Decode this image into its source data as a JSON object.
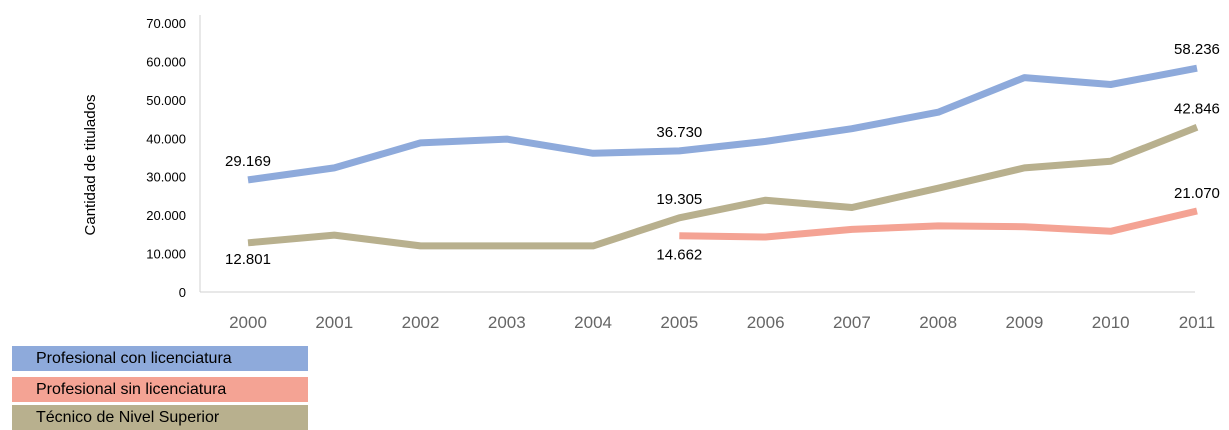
{
  "chart_data": {
    "type": "line",
    "title": "",
    "xlabel": "",
    "ylabel": "Cantidad de titulados",
    "categories": [
      "2000",
      "2001",
      "2002",
      "2003",
      "2004",
      "2005",
      "2006",
      "2007",
      "2008",
      "2009",
      "2010",
      "2011"
    ],
    "ylim": [
      0,
      70000
    ],
    "yticks": [
      "0",
      "10.000",
      "20.000",
      "30.000",
      "40.000",
      "50.000",
      "60.000",
      "70.000"
    ],
    "grid": false,
    "legend_position": "bottom-left",
    "series": [
      {
        "name": "Profesional con licenciatura",
        "color": "#8eaadb",
        "values": [
          29169,
          32300,
          38800,
          39800,
          36100,
          36730,
          39200,
          42500,
          46800,
          55800,
          54000,
          58236
        ]
      },
      {
        "name": "Profesional sin licenciatura",
        "color": "#f4a394",
        "values": [
          null,
          null,
          null,
          null,
          null,
          14662,
          14300,
          16300,
          17200,
          17000,
          15800,
          21070
        ]
      },
      {
        "name": "Técnico de Nivel Superior",
        "color": "#b8b08e",
        "values": [
          12801,
          14800,
          12000,
          12000,
          12000,
          19305,
          23900,
          22000,
          27000,
          32300,
          34000,
          42846
        ]
      }
    ],
    "data_labels": [
      {
        "series": 0,
        "index": 0,
        "text": "29.169"
      },
      {
        "series": 0,
        "index": 5,
        "text": "36.730"
      },
      {
        "series": 0,
        "index": 11,
        "text": "58.236"
      },
      {
        "series": 1,
        "index": 5,
        "text": "14.662"
      },
      {
        "series": 1,
        "index": 11,
        "text": "21.070"
      },
      {
        "series": 2,
        "index": 0,
        "text": "12.801"
      },
      {
        "series": 2,
        "index": 5,
        "text": "19.305"
      },
      {
        "series": 2,
        "index": 11,
        "text": "42.846"
      }
    ]
  }
}
